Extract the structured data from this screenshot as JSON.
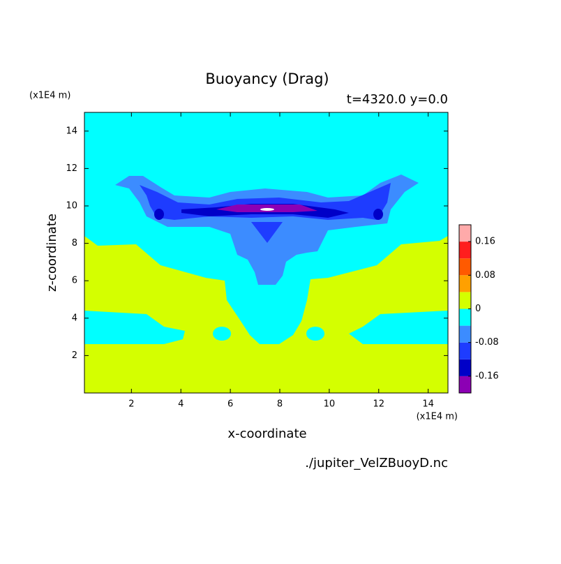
{
  "chart_data": {
    "type": "contour",
    "title": "Buoyancy (Drag)",
    "subtitle": "t=4320.0 y=0.0",
    "x_label": "x-coordinate",
    "y_label": "z-coordinate",
    "x_unit": "(x1E4 m)",
    "y_unit": "(x1E4 m)",
    "source": "./jupiter_VelZBuoyD.nc",
    "xlim": [
      0.1,
      14.8
    ],
    "ylim": [
      0,
      15
    ],
    "xticks": [
      2,
      4,
      6,
      8,
      10,
      12,
      14
    ],
    "yticks": [
      2,
      4,
      6,
      8,
      10,
      12,
      14
    ],
    "levels": [
      -0.2,
      -0.16,
      -0.12,
      -0.08,
      -0.04,
      0,
      0.04,
      0.08,
      0.12,
      0.16,
      0.2
    ],
    "colors": [
      "#8c00b4",
      "#0000c8",
      "#1e3cff",
      "#3c8cff",
      "#00ffff",
      "#d4ff00",
      "#ffa000",
      "#ff5a00",
      "#ff1e1e",
      "#ffaaaa"
    ],
    "colorbar_ticks": [
      -0.16,
      -0.08,
      0,
      0.08,
      0.16
    ]
  }
}
